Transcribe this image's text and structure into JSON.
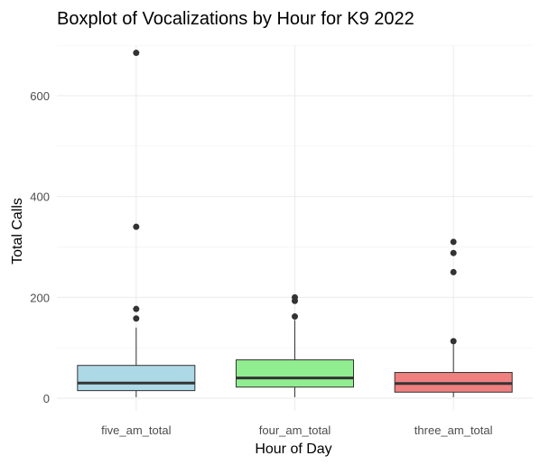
{
  "chart_data": {
    "type": "boxplot",
    "title": "Boxplot of Vocalizations by Hour for K9 2022",
    "xlabel": "Hour of Day",
    "ylabel": "Total Calls",
    "ylim": [
      -20,
      700
    ],
    "yticks": [
      0,
      200,
      400,
      600
    ],
    "grid": true,
    "categories": [
      "five_am_total",
      "four_am_total",
      "three_am_total"
    ],
    "boxes": [
      {
        "category": "five_am_total",
        "color": "#add8e6",
        "whisker_low": 2,
        "q1": 15,
        "median": 30,
        "q3": 65,
        "whisker_high": 140,
        "outliers": [
          158,
          177,
          340,
          685
        ]
      },
      {
        "category": "four_am_total",
        "color": "#90ee90",
        "whisker_low": 2,
        "q1": 22,
        "median": 40,
        "q3": 76,
        "whisker_high": 155,
        "outliers": [
          162,
          193,
          200
        ]
      },
      {
        "category": "three_am_total",
        "color": "#f08080",
        "whisker_low": 2,
        "q1": 12,
        "median": 29,
        "q3": 51,
        "whisker_high": 107,
        "outliers": [
          113,
          250,
          288,
          310
        ]
      }
    ]
  }
}
